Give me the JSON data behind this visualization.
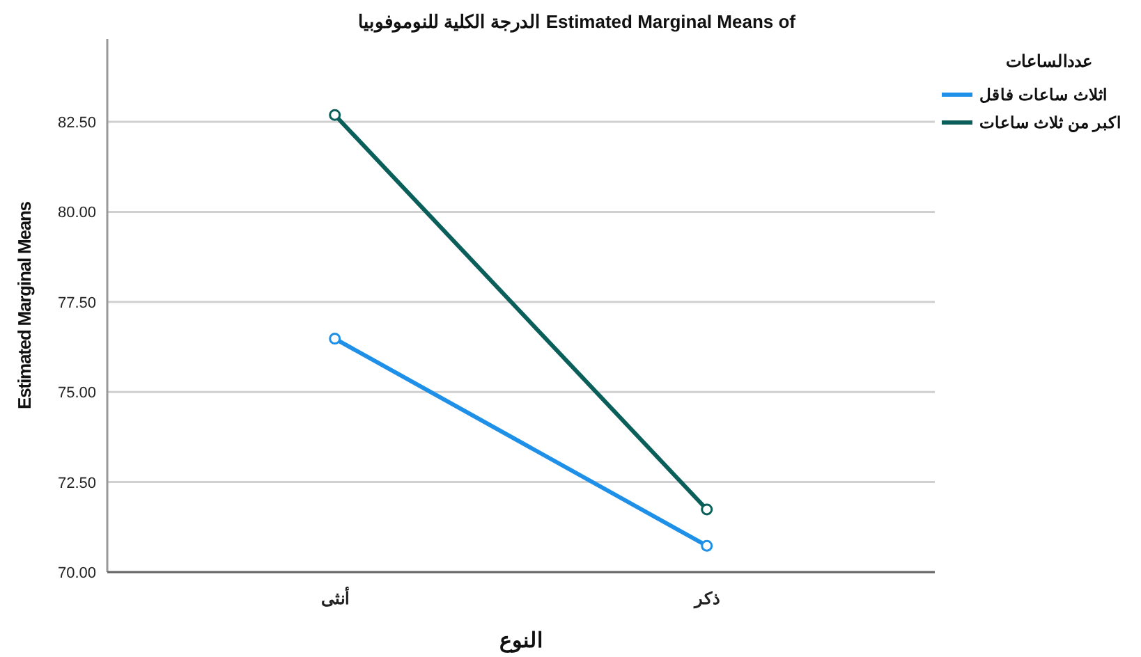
{
  "chart_data": {
    "type": "line",
    "title": "Estimated Marginal Means of الدرجة الكلية للنوموفوبيا",
    "xlabel": "النوع",
    "ylabel": "Estimated Marginal Means",
    "legend_title": "عددالساعات",
    "categories": [
      "أنثى",
      "ذكر"
    ],
    "series": [
      {
        "name": "اثلاث ساعات فاقل",
        "color": "#1e90e8",
        "values": [
          76.48,
          70.73
        ]
      },
      {
        "name": "اكبر من ثلاث ساعات",
        "color": "#0b5f5a",
        "values": [
          82.69,
          71.74
        ]
      }
    ],
    "ylim": [
      70,
      84.8
    ],
    "yticks": [
      {
        "value": 70,
        "label": "70.00"
      },
      {
        "value": 72.5,
        "label": "72.50"
      },
      {
        "value": 75,
        "label": "75.00"
      },
      {
        "value": 77.5,
        "label": "77.50"
      },
      {
        "value": 80,
        "label": "80.00"
      },
      {
        "value": 82.5,
        "label": "82.50"
      }
    ],
    "grid": "y",
    "legend": "top right",
    "marker": "circle",
    "line_style": "solid"
  }
}
